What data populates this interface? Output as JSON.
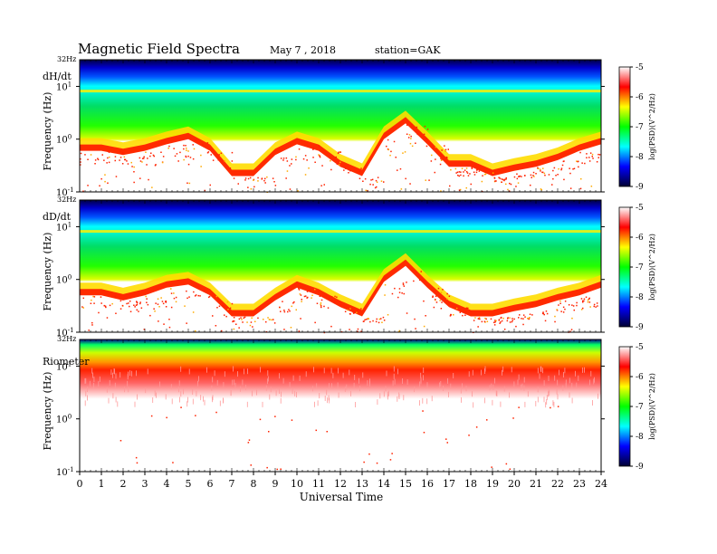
{
  "header": {
    "title": "Magnetic  Field  Spectra",
    "date": "May 7  , 2018",
    "station": "station=GAK"
  },
  "colorbar": {
    "label": "log(PSD)(V^2/Hz)",
    "ticks": [
      "-5",
      "-6",
      "-7",
      "-8",
      "-9"
    ],
    "stops": [
      "#ffffff",
      "#ff0000",
      "#ffff00",
      "#00ff00",
      "#00ffff",
      "#0000ff",
      "#000033"
    ]
  },
  "chart_data": [
    {
      "type": "heatmap",
      "panel_label": "dH/dt",
      "ylabel": "Frequency  (Hz)",
      "top_label": "32Hz",
      "y_ticks": [
        "10^1",
        "10^0",
        "10^-1"
      ],
      "xlim": [
        0,
        24
      ],
      "scale": "log",
      "noise_floor_hz": [
        0.6,
        0.6,
        0.5,
        0.6,
        0.8,
        1.0,
        0.6,
        0.2,
        0.2,
        0.5,
        0.8,
        0.6,
        0.3,
        0.2,
        1.0,
        2.0,
        0.8,
        0.3,
        0.3,
        0.2,
        0.25,
        0.3,
        0.4,
        0.6,
        0.8
      ]
    },
    {
      "type": "heatmap",
      "panel_label": "dD/dt",
      "ylabel": "Frequency  (Hz)",
      "top_label": "32Hz",
      "y_ticks": [
        "10^1",
        "10^0",
        "10^-1"
      ],
      "xlim": [
        0,
        24
      ],
      "scale": "log",
      "noise_floor_hz": [
        0.5,
        0.5,
        0.4,
        0.5,
        0.7,
        0.8,
        0.5,
        0.2,
        0.2,
        0.4,
        0.7,
        0.5,
        0.3,
        0.2,
        0.9,
        1.8,
        0.7,
        0.3,
        0.2,
        0.2,
        0.25,
        0.3,
        0.4,
        0.5,
        0.7
      ]
    },
    {
      "type": "heatmap",
      "panel_label": "Riometer",
      "ylabel": "Frequency  (Hz)",
      "top_label": "32Hz",
      "y_ticks": [
        "10^1",
        "10^0",
        "10^-1"
      ],
      "xlim": [
        0,
        24
      ],
      "scale": "log",
      "noise_floor_hz": [
        6,
        6,
        6,
        6,
        6,
        6,
        6,
        6,
        6,
        6,
        6,
        6,
        5,
        5,
        4,
        4,
        4,
        5,
        6,
        6,
        6,
        6,
        6,
        6,
        6
      ]
    }
  ],
  "x_axis": {
    "label": "Universal  Time",
    "ticks": [
      "0",
      "1",
      "2",
      "3",
      "4",
      "5",
      "6",
      "7",
      "8",
      "9",
      "10",
      "11",
      "12",
      "13",
      "14",
      "15",
      "16",
      "17",
      "18",
      "19",
      "20",
      "21",
      "22",
      "23",
      "24"
    ]
  }
}
